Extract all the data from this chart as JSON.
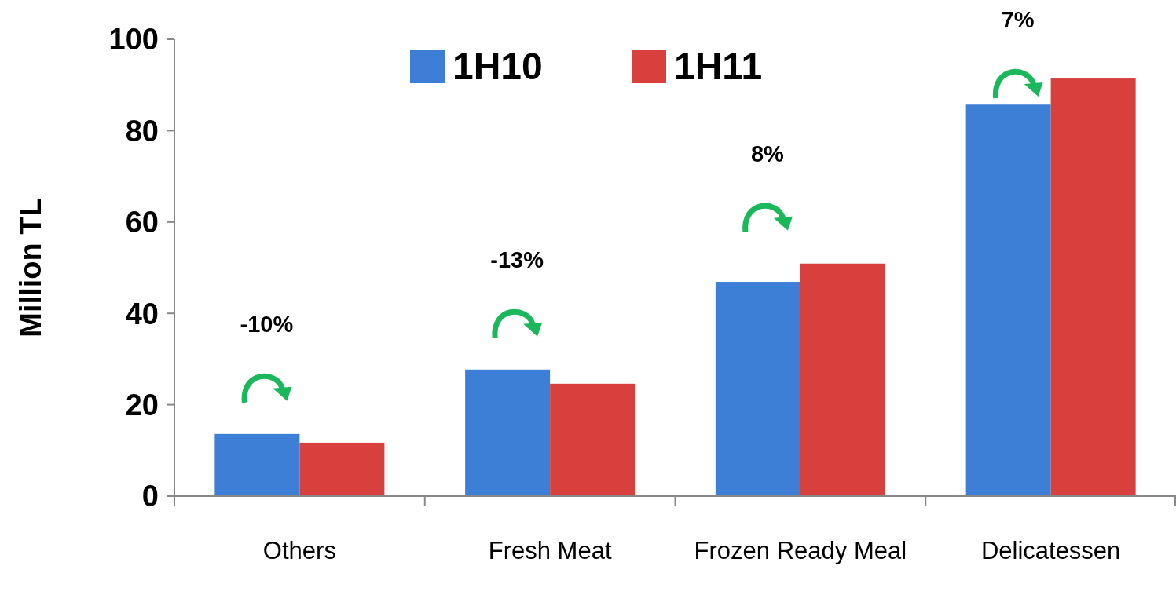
{
  "chart_data": {
    "type": "bar",
    "ylabel": "Million TL",
    "categories": [
      "Others",
      "Fresh Meat",
      "Frozen Ready Meal",
      "Delicatessen"
    ],
    "series": [
      {
        "name": "1H10",
        "color": "#3d7fd6",
        "values": [
          13.6,
          27.7,
          46.9,
          85.7
        ]
      },
      {
        "name": "1H11",
        "color": "#d8403d",
        "values": [
          11.7,
          24.6,
          50.9,
          91.4
        ]
      }
    ],
    "ylim": [
      0,
      100
    ],
    "yticks": [
      0,
      20,
      40,
      60,
      80,
      100
    ],
    "grid": false,
    "legend": "top",
    "annotations": [
      "-10%",
      "-13%",
      "8%",
      "7%"
    ]
  }
}
